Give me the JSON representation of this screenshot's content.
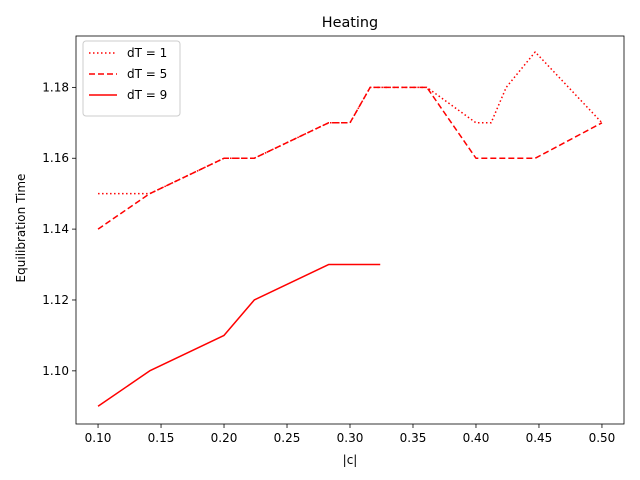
{
  "chart_data": {
    "type": "line",
    "title": "Heating",
    "xlabel": "|c|",
    "ylabel": "Equilibration Time",
    "xlim": [
      0.0825,
      0.5175
    ],
    "ylim": [
      1.085,
      1.1945
    ],
    "xticks": [
      0.1,
      0.15,
      0.2,
      0.25,
      0.3,
      0.35,
      0.4,
      0.45,
      0.5
    ],
    "xtick_labels": [
      "0.10",
      "0.15",
      "0.20",
      "0.25",
      "0.30",
      "0.35",
      "0.40",
      "0.45",
      "0.50"
    ],
    "yticks": [
      1.1,
      1.12,
      1.14,
      1.16,
      1.18
    ],
    "ytick_labels": [
      "1.10",
      "1.12",
      "1.14",
      "1.16",
      "1.18"
    ],
    "grid": false,
    "legend_position": "top-left",
    "series": [
      {
        "name": "dT = 1",
        "color": "#ff0000",
        "style": "dotted",
        "x": [
          0.1,
          0.141,
          0.2,
          0.224,
          0.283,
          0.3,
          0.316,
          0.361,
          0.4,
          0.412,
          0.424,
          0.447,
          0.5
        ],
        "y": [
          1.15,
          1.15,
          1.16,
          1.16,
          1.17,
          1.17,
          1.18,
          1.18,
          1.17,
          1.17,
          1.18,
          1.19,
          1.17
        ]
      },
      {
        "name": "dT = 5",
        "color": "#ff0000",
        "style": "dashed",
        "x": [
          0.1,
          0.141,
          0.2,
          0.224,
          0.283,
          0.3,
          0.316,
          0.361,
          0.4,
          0.447,
          0.5
        ],
        "y": [
          1.14,
          1.15,
          1.16,
          1.16,
          1.17,
          1.17,
          1.18,
          1.18,
          1.16,
          1.16,
          1.17
        ]
      },
      {
        "name": "dT = 9",
        "color": "#ff0000",
        "style": "solid",
        "x": [
          0.1,
          0.141,
          0.2,
          0.224,
          0.283,
          0.3,
          0.316,
          0.324
        ],
        "y": [
          1.09,
          1.1,
          1.11,
          1.12,
          1.13,
          1.13,
          1.13,
          1.13
        ]
      }
    ]
  }
}
